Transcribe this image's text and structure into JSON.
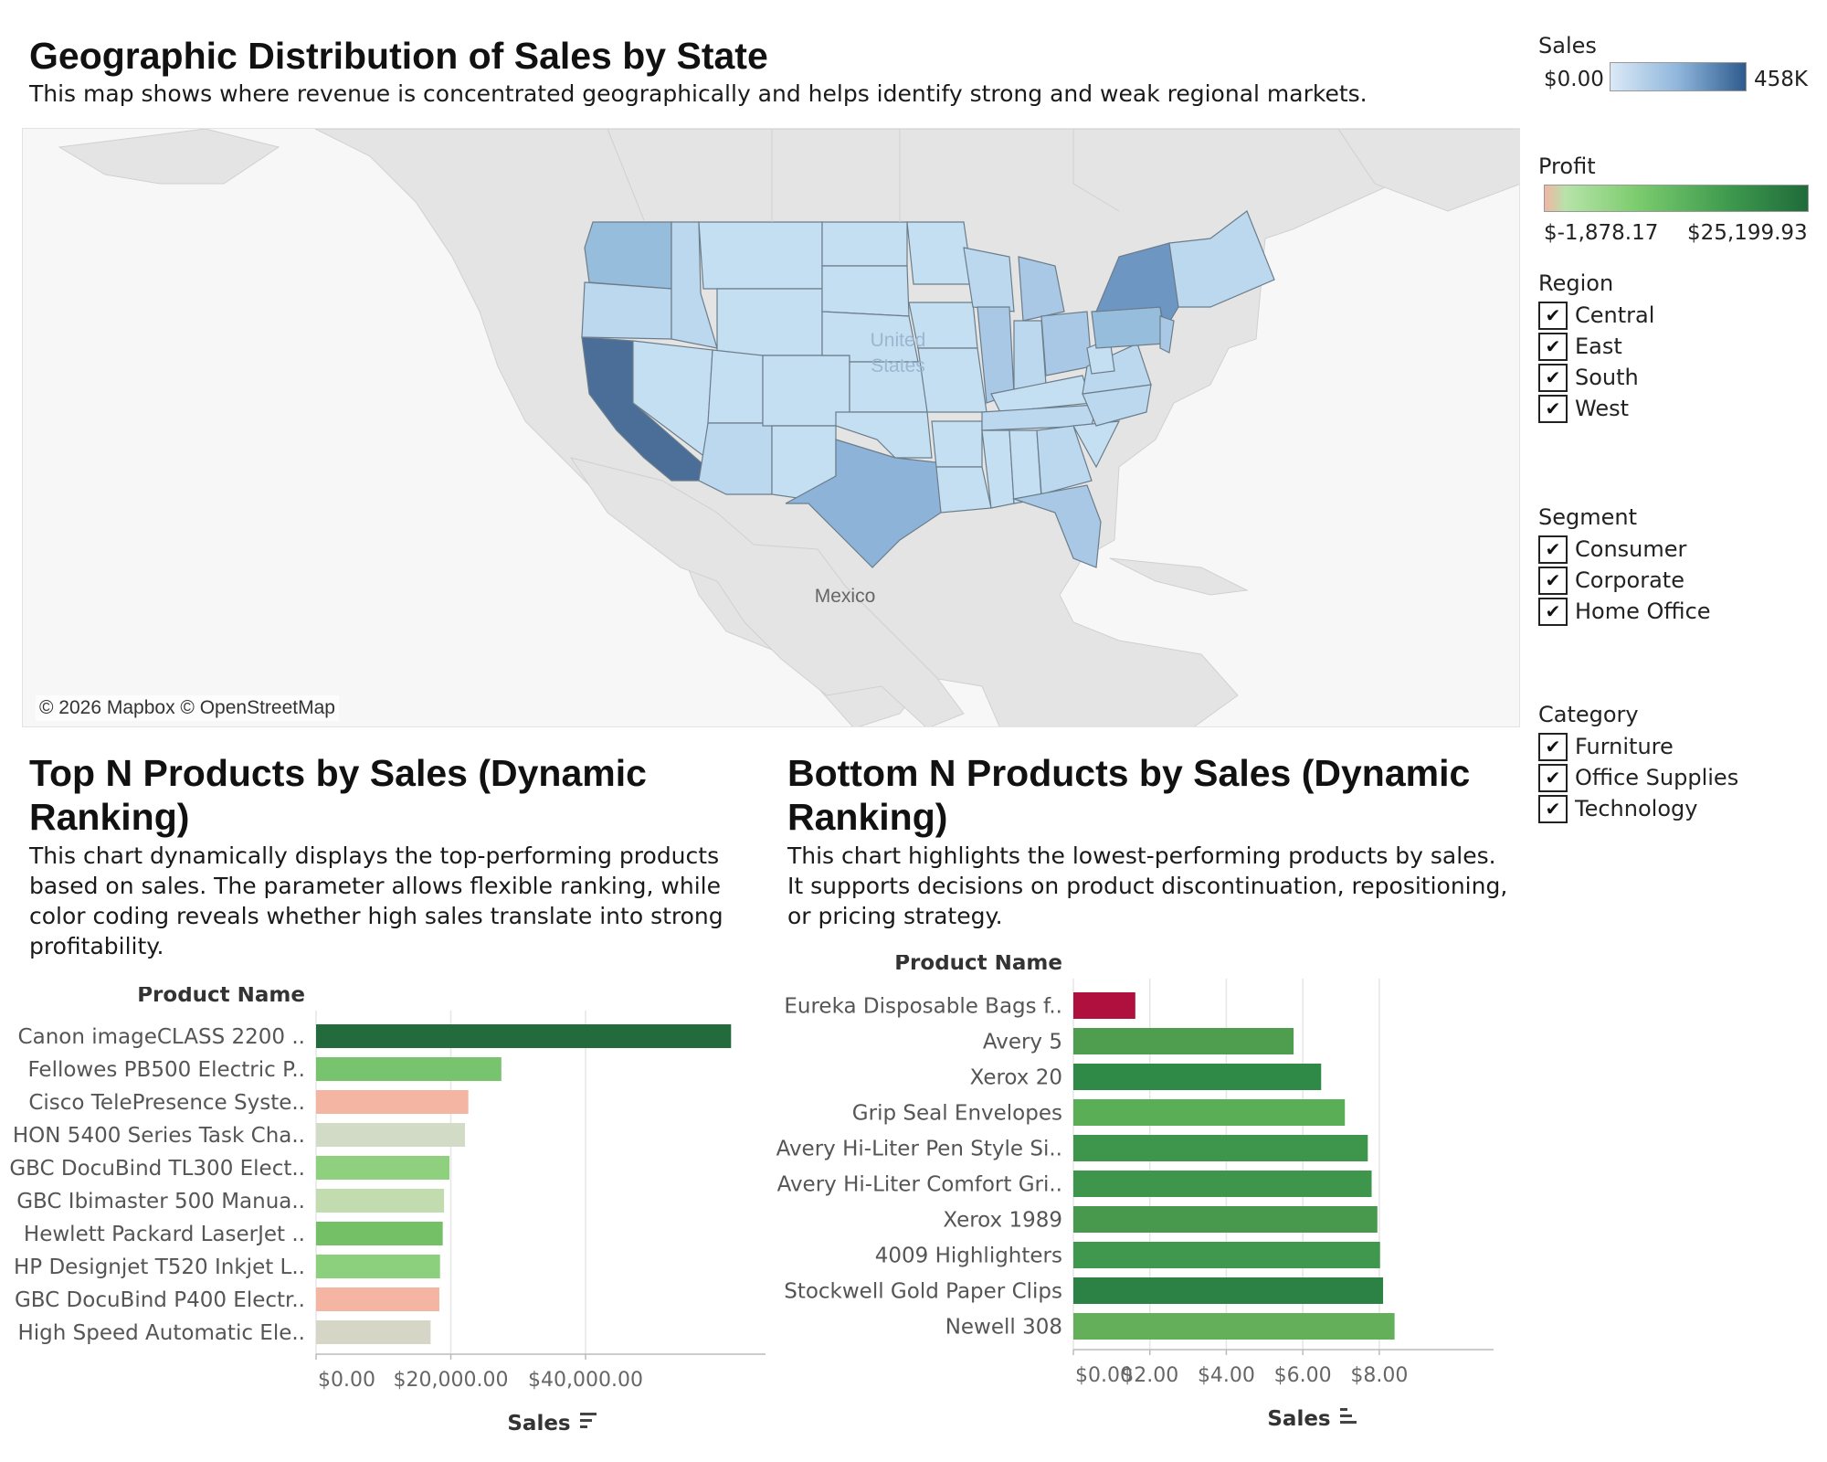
{
  "map_section": {
    "title": "Geographic Distribution of Sales by State",
    "description": "This map shows where revenue is concentrated geographically and helps identify strong and weak regional markets.",
    "credit": "© 2026 Mapbox © OpenStreetMap",
    "country_labels": {
      "us": "United States",
      "mexico": "Mexico"
    }
  },
  "legends": {
    "sales": {
      "title": "Sales",
      "min": "$0.00",
      "max": "458K"
    },
    "profit": {
      "title": "Profit",
      "min": "$-1,878.17",
      "max": "$25,199.93"
    }
  },
  "filters": {
    "region": {
      "title": "Region",
      "items": [
        "Central",
        "East",
        "South",
        "West"
      ]
    },
    "segment": {
      "title": "Segment",
      "items": [
        "Consumer",
        "Corporate",
        "Home Office"
      ]
    },
    "category": {
      "title": "Category",
      "items": [
        "Furniture",
        "Office Supplies",
        "Technology"
      ]
    },
    "check_glyph": "✔"
  },
  "top_section": {
    "title": "Top N Products by Sales (Dynamic Ranking)",
    "description": "This chart dynamically displays the top-performing products based on sales. The parameter allows flexible ranking, while color coding reveals whether high sales translate into strong profitability."
  },
  "bottom_section": {
    "title": "Bottom N Products by Sales (Dynamic Ranking)",
    "description": "This chart highlights the lowest-performing products by sales. It supports decisions on product discontinuation, repositioning, or pricing strategy."
  },
  "chart_data": [
    {
      "type": "bar",
      "orientation": "horizontal",
      "row_header": "Product Name",
      "xlabel": "Sales",
      "x_ticks": [
        "$0.00",
        "$20,000.00",
        "$40,000.00"
      ],
      "x_tick_values": [
        0,
        20000,
        40000
      ],
      "xlim": [
        0,
        64000
      ],
      "categories": [
        "Canon imageCLASS 2200 ..",
        "Fellowes PB500 Electric P..",
        "Cisco TelePresence Syste..",
        "HON 5400 Series Task Cha..",
        "GBC DocuBind TL300 Elect..",
        "GBC Ibimaster 500 Manua..",
        "Hewlett Packard LaserJet ..",
        "HP Designjet T520 Inkjet L..",
        "GBC DocuBind P400 Electr..",
        "High Speed Automatic Ele.."
      ],
      "values": [
        61600,
        27500,
        22600,
        22100,
        19800,
        19000,
        18800,
        18400,
        18300,
        17000
      ],
      "colors": [
        "#236b3c",
        "#78c36e",
        "#f5b5a3",
        "#d2dbc6",
        "#8fd07e",
        "#c2dcb0",
        "#74c067",
        "#8ccf7c",
        "#f5b5a3",
        "#d6d6c6"
      ],
      "grid": true
    },
    {
      "type": "bar",
      "orientation": "horizontal",
      "row_header": "Product Name",
      "xlabel": "Sales",
      "x_ticks": [
        "$0.00",
        "$2.00",
        "$4.00",
        "$6.00",
        "$8.00"
      ],
      "x_tick_values": [
        0,
        2,
        4,
        6,
        8
      ],
      "xlim": [
        0,
        8.6
      ],
      "categories": [
        "Eureka Disposable Bags f..",
        "Avery 5",
        "Xerox 20",
        "Grip Seal Envelopes",
        "Avery Hi-Liter Pen Style Si..",
        "Avery Hi-Liter Comfort Gri..",
        "Xerox 1989",
        "4009 Highlighters",
        "Stockwell Gold Paper Clips",
        "Newell 308"
      ],
      "values": [
        1.62,
        5.76,
        6.48,
        7.1,
        7.7,
        7.8,
        7.95,
        8.02,
        8.1,
        8.4
      ],
      "colors": [
        "#b0103e",
        "#4f9e50",
        "#2f8a48",
        "#5aae55",
        "#3e964c",
        "#3e964c",
        "#48984d",
        "#3f984e",
        "#2b8244",
        "#64b05a"
      ],
      "grid": true
    }
  ]
}
